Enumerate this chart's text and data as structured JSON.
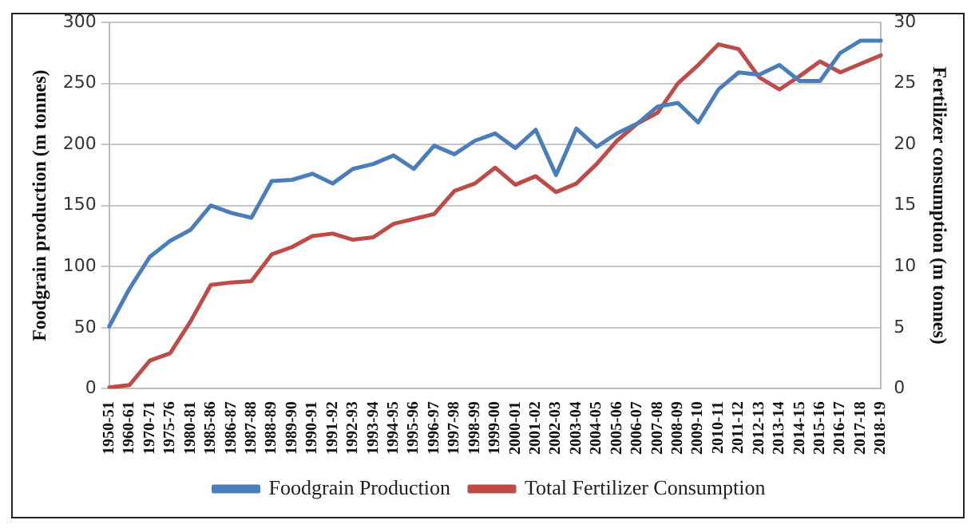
{
  "chart_data": {
    "type": "line",
    "ylabel": "Foodgrain production (m tonnes)",
    "y2label": "Fertilizer consumption (m tonnes)",
    "categories": [
      "1950-51",
      "1960-61",
      "1970-71",
      "1975-76",
      "1980-81",
      "1985-86",
      "1986-87",
      "1987-88",
      "1988-89",
      "1989-90",
      "1990-91",
      "1991-92",
      "1992-93",
      "1993-94",
      "1994-95",
      "1995-96",
      "1996-97",
      "1997-98",
      "1998-99",
      "1999-00",
      "2000-01",
      "2001-02",
      "2002-03",
      "2003-04",
      "2004-05",
      "2005-06",
      "2006-07",
      "2007-08",
      "2008-09",
      "2009-10",
      "2010-11",
      "2011-12",
      "2012-13",
      "2013-14",
      "2014-15",
      "2015-16",
      "2016-17",
      "2017-18",
      "2018-19"
    ],
    "series": [
      {
        "name": "Foodgrain Production",
        "color": "#4a7ebb",
        "values": [
          51,
          82,
          108,
          121,
          130,
          150,
          144,
          140,
          170,
          171,
          176,
          168,
          180,
          184,
          191,
          180,
          199,
          192,
          203,
          209,
          197,
          212,
          175,
          213,
          198,
          209,
          217,
          231,
          234,
          218,
          245,
          259,
          257,
          265,
          252,
          252,
          275,
          285,
          285
        ]
      },
      {
        "name": "Total Fertilizer Consumption",
        "color": "#be4b48",
        "axis": "y2",
        "values": [
          0.1,
          0.3,
          2.3,
          2.9,
          5.5,
          8.5,
          8.7,
          8.8,
          11.0,
          11.6,
          12.5,
          12.7,
          12.2,
          12.4,
          13.5,
          13.9,
          14.3,
          16.2,
          16.8,
          18.1,
          16.7,
          17.4,
          16.1,
          16.8,
          18.4,
          20.3,
          21.7,
          22.6,
          25.0,
          26.5,
          28.2,
          27.8,
          25.5,
          24.5,
          25.6,
          26.8,
          25.9,
          26.6,
          27.3
        ]
      }
    ],
    "ylim": [
      0,
      300
    ],
    "yticks": [
      0,
      50,
      100,
      150,
      200,
      250,
      300
    ],
    "y2lim": [
      0,
      30
    ],
    "y2ticks": [
      0,
      5,
      10,
      15,
      20,
      25,
      30
    ],
    "grid": "y",
    "legend": "bottom",
    "marker": "none",
    "line_style": "solid"
  }
}
